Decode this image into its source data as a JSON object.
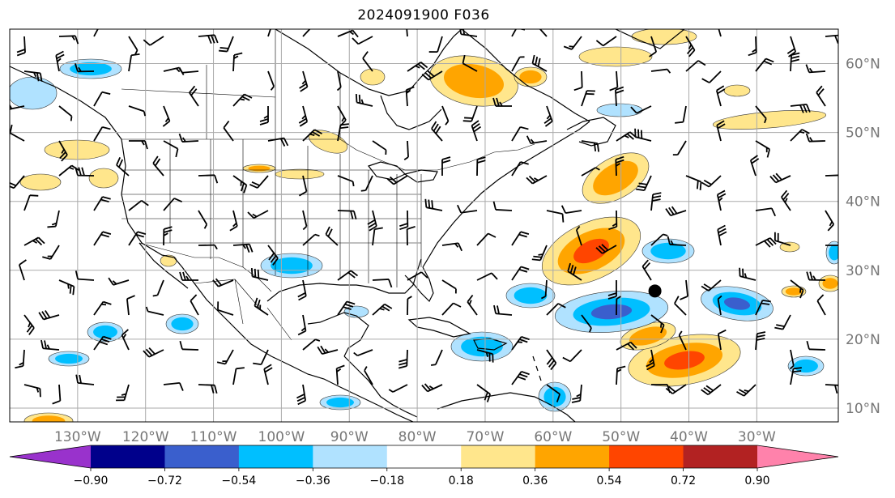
{
  "title": "2024091900 F036",
  "map": {
    "lon_range": [
      -140,
      -18
    ],
    "lat_range": [
      8,
      65
    ],
    "lon_ticks": [
      {
        "value": -130,
        "label": "130°W"
      },
      {
        "value": -120,
        "label": "120°W"
      },
      {
        "value": -110,
        "label": "110°W"
      },
      {
        "value": -100,
        "label": "100°W"
      },
      {
        "value": -90,
        "label": "90°W"
      },
      {
        "value": -80,
        "label": "80°W"
      },
      {
        "value": -70,
        "label": "70°W"
      },
      {
        "value": -60,
        "label": "60°W"
      },
      {
        "value": -50,
        "label": "50°W"
      },
      {
        "value": -40,
        "label": "40°W"
      },
      {
        "value": -30,
        "label": "30°W"
      }
    ],
    "lat_ticks": [
      {
        "value": 10,
        "label": "10°N"
      },
      {
        "value": 20,
        "label": "20°N"
      },
      {
        "value": 30,
        "label": "30°N"
      },
      {
        "value": 40,
        "label": "40°N"
      },
      {
        "value": 50,
        "label": "50°N"
      },
      {
        "value": 60,
        "label": "60°N"
      }
    ],
    "grid": true,
    "storm_marker": {
      "lon": -45,
      "lat": 27
    }
  },
  "colorbar": {
    "levels": [
      "−0.90",
      "−0.72",
      "−0.54",
      "−0.36",
      "−0.18",
      "0.18",
      "0.36",
      "0.54",
      "0.72",
      "0.90"
    ],
    "colors": [
      "#9932cc",
      "#00008b",
      "#3a5fcd",
      "#00bfff",
      "#b0e2ff",
      "#ffffff",
      "#ffe68c",
      "#ffa500",
      "#ff4500",
      "#b22222",
      "#ff82ab"
    ],
    "extend": "both"
  },
  "palette": {
    "pos1": "#ffe68c",
    "pos2": "#ffa500",
    "pos3": "#ff4500",
    "neg1": "#b0e2ff",
    "neg2": "#00bfff",
    "neg3": "#3a5fcd"
  }
}
